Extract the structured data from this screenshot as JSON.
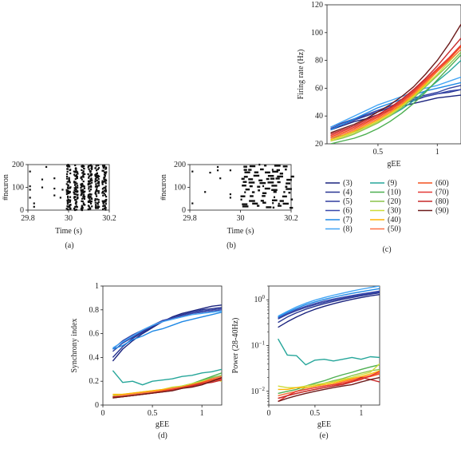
{
  "colors": {
    "(3)": "#1a237e",
    "(4)": "#283593",
    "(5)": "#303f9f",
    "(6)": "#3949ab",
    "(7)": "#1e88e5",
    "(8)": "#42a5f5",
    "(9)": "#26a69a",
    "(10)": "#4caf50",
    "(20)": "#8bc34a",
    "(30)": "#cddc39",
    "(40)": "#ffb300",
    "(50)": "#ff7043",
    "(60)": "#f4511e",
    "(70)": "#e53935",
    "(80)": "#c62828",
    "(90)": "#6d1b1b"
  },
  "legend": {
    "items": [
      "(3)",
      "(4)",
      "(5)",
      "(6)",
      "(7)",
      "(8)",
      "(9)",
      "(10)",
      "(20)",
      "(30)",
      "(40)",
      "(50)",
      "(60)",
      "(70)",
      "(80)",
      "(90)"
    ]
  },
  "chart_data": [
    {
      "id": "a",
      "type": "scatter",
      "caption": "(a)",
      "xlabel": "Time (s)",
      "ylabel": "#neuron",
      "xlim": [
        29.8,
        30.2
      ],
      "ylim": [
        0,
        200
      ],
      "xticks": [
        "29.8",
        "30",
        "30.2"
      ],
      "yticks": [
        "0",
        "100",
        "200"
      ],
      "points": [
        [
          29.81,
          170
        ],
        [
          29.81,
          105
        ],
        [
          29.81,
          90
        ],
        [
          29.81,
          55
        ],
        [
          29.83,
          30
        ],
        [
          29.83,
          15
        ],
        [
          29.87,
          135
        ],
        [
          29.87,
          100
        ],
        [
          29.89,
          190
        ],
        [
          29.93,
          140
        ],
        [
          29.93,
          65
        ],
        [
          29.93,
          95
        ],
        [
          29.96,
          55
        ],
        [
          29.97,
          90
        ]
      ],
      "bursts": [
        30.0,
        30.035,
        30.07,
        30.105,
        30.14,
        30.175
      ]
    },
    {
      "id": "b",
      "type": "scatter",
      "caption": "(b)",
      "xlabel": "Time (s)",
      "ylabel": "#neuron",
      "xlim": [
        29.8,
        30.2
      ],
      "ylim": [
        0,
        200
      ],
      "xticks": [
        "29.8",
        "30",
        "30.2"
      ],
      "yticks": [
        "0",
        "100",
        "200"
      ],
      "points": [
        [
          29.81,
          170
        ],
        [
          29.81,
          30
        ],
        [
          29.86,
          80
        ],
        [
          29.88,
          165
        ],
        [
          29.91,
          175
        ],
        [
          29.91,
          190
        ],
        [
          29.92,
          140
        ],
        [
          29.96,
          175
        ],
        [
          29.96,
          55
        ],
        [
          29.96,
          70
        ]
      ]
    },
    {
      "id": "c",
      "type": "line",
      "caption": "(c)",
      "xlabel": "gEE",
      "ylabel": "Firing rate (Hz)",
      "xlim": [
        0.07,
        1.2
      ],
      "ylim": [
        20,
        120
      ],
      "xticks": [
        "0.5",
        "1"
      ],
      "xtick_values": [
        0.5,
        1
      ],
      "yticks": [
        "20",
        "40",
        "60",
        "80",
        "100",
        "120"
      ],
      "ytick_values": [
        20,
        40,
        60,
        80,
        100,
        120
      ],
      "x": [
        0.1,
        0.2,
        0.3,
        0.4,
        0.5,
        0.6,
        0.7,
        0.8,
        0.9,
        1.0,
        1.1,
        1.2
      ],
      "series": [
        {
          "name": "(3)",
          "values": [
            30,
            33,
            36,
            38,
            41,
            44,
            47,
            49,
            51,
            53,
            54,
            55
          ]
        },
        {
          "name": "(4)",
          "values": [
            31,
            34,
            37,
            40,
            43,
            46,
            49,
            51,
            54,
            56,
            57,
            59
          ]
        },
        {
          "name": "(5)",
          "values": [
            32,
            35,
            38,
            41,
            44,
            47,
            50,
            53,
            55,
            57,
            60,
            62
          ]
        },
        {
          "name": "(6)",
          "values": [
            31,
            34,
            37,
            41,
            44,
            47,
            49,
            52,
            54,
            56,
            58,
            59
          ]
        },
        {
          "name": "(7)",
          "values": [
            30,
            34,
            38,
            42,
            46,
            49,
            52,
            55,
            58,
            60,
            62,
            64
          ]
        },
        {
          "name": "(8)",
          "values": [
            32,
            36,
            40,
            44,
            48,
            51,
            54,
            57,
            60,
            62,
            65,
            68
          ]
        },
        {
          "name": "(9)",
          "values": [
            24,
            26,
            29,
            32,
            36,
            40,
            45,
            51,
            58,
            65,
            72,
            80
          ]
        },
        {
          "name": "(10)",
          "values": [
            20,
            22,
            24,
            27,
            31,
            36,
            42,
            49,
            57,
            66,
            75,
            84
          ]
        },
        {
          "name": "(20)",
          "values": [
            22,
            24,
            27,
            31,
            35,
            40,
            46,
            53,
            61,
            69,
            77,
            86
          ]
        },
        {
          "name": "(30)",
          "values": [
            22,
            25,
            28,
            32,
            36,
            41,
            47,
            54,
            62,
            70,
            79,
            88
          ]
        },
        {
          "name": "(40)",
          "values": [
            23,
            26,
            29,
            33,
            37,
            42,
            48,
            55,
            63,
            72,
            81,
            90
          ]
        },
        {
          "name": "(50)",
          "values": [
            24,
            27,
            30,
            34,
            38,
            43,
            49,
            56,
            64,
            72,
            80,
            88
          ]
        },
        {
          "name": "(60)",
          "values": [
            25,
            28,
            31,
            35,
            39,
            44,
            50,
            57,
            65,
            73,
            81,
            90
          ]
        },
        {
          "name": "(70)",
          "values": [
            26,
            29,
            32,
            36,
            40,
            45,
            51,
            58,
            66,
            74,
            82,
            91
          ]
        },
        {
          "name": "(80)",
          "values": [
            27,
            30,
            33,
            37,
            41,
            46,
            52,
            59,
            67,
            76,
            86,
            96
          ]
        },
        {
          "name": "(90)",
          "values": [
            28,
            31,
            34,
            38,
            43,
            48,
            54,
            61,
            70,
            80,
            92,
            106
          ]
        }
      ]
    },
    {
      "id": "d",
      "type": "line",
      "caption": "(d)",
      "xlabel": "gEE",
      "ylabel": "Synchrony index",
      "xlim": [
        0,
        1.2
      ],
      "ylim": [
        0,
        1
      ],
      "xticks": [
        "0",
        "0.5",
        "1"
      ],
      "xtick_values": [
        0,
        0.5,
        1
      ],
      "yticks": [
        "0",
        "0.2",
        "0.4",
        "0.6",
        "0.8",
        "1"
      ],
      "ytick_values": [
        0,
        0.2,
        0.4,
        0.6,
        0.8,
        1
      ],
      "x": [
        0.1,
        0.2,
        0.3,
        0.4,
        0.5,
        0.6,
        0.7,
        0.8,
        0.9,
        1.0,
        1.1,
        1.2
      ],
      "series": [
        {
          "name": "(3)",
          "values": [
            0.37,
            0.47,
            0.54,
            0.6,
            0.65,
            0.7,
            0.74,
            0.77,
            0.79,
            0.81,
            0.83,
            0.84
          ]
        },
        {
          "name": "(4)",
          "values": [
            0.4,
            0.49,
            0.56,
            0.61,
            0.66,
            0.7,
            0.73,
            0.76,
            0.78,
            0.8,
            0.81,
            0.82
          ]
        },
        {
          "name": "(5)",
          "values": [
            0.45,
            0.52,
            0.57,
            0.62,
            0.66,
            0.7,
            0.73,
            0.75,
            0.77,
            0.79,
            0.8,
            0.81
          ]
        },
        {
          "name": "(6)",
          "values": [
            0.47,
            0.54,
            0.59,
            0.63,
            0.67,
            0.71,
            0.73,
            0.75,
            0.77,
            0.78,
            0.79,
            0.8
          ]
        },
        {
          "name": "(7)",
          "values": [
            0.47,
            0.5,
            0.55,
            0.58,
            0.62,
            0.64,
            0.67,
            0.7,
            0.72,
            0.74,
            0.76,
            0.78
          ]
        },
        {
          "name": "(8)",
          "values": [
            0.48,
            0.53,
            0.58,
            0.63,
            0.67,
            0.7,
            0.72,
            0.74,
            0.76,
            0.77,
            0.78,
            0.79
          ]
        },
        {
          "name": "(9)",
          "values": [
            0.29,
            0.19,
            0.2,
            0.17,
            0.2,
            0.21,
            0.22,
            0.24,
            0.25,
            0.27,
            0.28,
            0.3
          ]
        },
        {
          "name": "(10)",
          "values": [
            0.07,
            0.08,
            0.09,
            0.1,
            0.11,
            0.12,
            0.14,
            0.16,
            0.18,
            0.21,
            0.24,
            0.27
          ]
        },
        {
          "name": "(20)",
          "values": [
            0.06,
            0.07,
            0.08,
            0.09,
            0.11,
            0.12,
            0.14,
            0.16,
            0.18,
            0.2,
            0.23,
            0.25
          ]
        },
        {
          "name": "(30)",
          "values": [
            0.08,
            0.09,
            0.1,
            0.11,
            0.12,
            0.13,
            0.15,
            0.16,
            0.18,
            0.2,
            0.22,
            0.2
          ]
        },
        {
          "name": "(40)",
          "values": [
            0.09,
            0.09,
            0.1,
            0.11,
            0.12,
            0.13,
            0.14,
            0.15,
            0.17,
            0.19,
            0.21,
            0.22
          ]
        },
        {
          "name": "(50)",
          "values": [
            0.07,
            0.08,
            0.09,
            0.1,
            0.11,
            0.12,
            0.14,
            0.15,
            0.17,
            0.19,
            0.22,
            0.24
          ]
        },
        {
          "name": "(60)",
          "values": [
            0.07,
            0.07,
            0.08,
            0.09,
            0.1,
            0.12,
            0.13,
            0.15,
            0.17,
            0.19,
            0.21,
            0.23
          ]
        },
        {
          "name": "(70)",
          "values": [
            0.06,
            0.07,
            0.08,
            0.09,
            0.1,
            0.11,
            0.13,
            0.14,
            0.16,
            0.18,
            0.2,
            0.22
          ]
        },
        {
          "name": "(80)",
          "values": [
            0.07,
            0.07,
            0.08,
            0.09,
            0.1,
            0.11,
            0.12,
            0.14,
            0.16,
            0.18,
            0.19,
            0.21
          ]
        },
        {
          "name": "(90)",
          "values": [
            0.06,
            0.07,
            0.08,
            0.09,
            0.1,
            0.11,
            0.12,
            0.14,
            0.15,
            0.17,
            0.2,
            0.23
          ]
        }
      ]
    },
    {
      "id": "e",
      "type": "line",
      "caption": "(e)",
      "xlabel": "gEE",
      "ylabel": "Power (28-40Hz)",
      "xlim": [
        0,
        1.2
      ],
      "ylim": [
        0.005,
        2
      ],
      "yscale": "log",
      "xticks": [
        "0",
        "0.5",
        "1"
      ],
      "xtick_values": [
        0,
        0.5,
        1
      ],
      "ytick_values": [
        0.01,
        0.1,
        1
      ],
      "ytick_labels": [
        {
          "base": "10",
          "exp": "−2"
        },
        {
          "base": "10",
          "exp": "−1"
        },
        {
          "base": "10",
          "exp": "0"
        }
      ],
      "x": [
        0.1,
        0.2,
        0.3,
        0.4,
        0.5,
        0.6,
        0.7,
        0.8,
        0.9,
        1.0,
        1.1,
        1.2
      ],
      "series": [
        {
          "name": "(3)",
          "values": [
            0.25,
            0.33,
            0.42,
            0.52,
            0.62,
            0.72,
            0.82,
            0.92,
            1.02,
            1.12,
            1.22,
            1.3
          ]
        },
        {
          "name": "(4)",
          "values": [
            0.32,
            0.42,
            0.52,
            0.62,
            0.72,
            0.82,
            0.92,
            1.02,
            1.12,
            1.22,
            1.32,
            1.42
          ]
        },
        {
          "name": "(5)",
          "values": [
            0.38,
            0.48,
            0.58,
            0.68,
            0.78,
            0.88,
            0.98,
            1.08,
            1.18,
            1.28,
            1.38,
            1.48
          ]
        },
        {
          "name": "(6)",
          "values": [
            0.4,
            0.5,
            0.61,
            0.72,
            0.83,
            0.94,
            1.04,
            1.14,
            1.24,
            1.34,
            1.44,
            1.55
          ]
        },
        {
          "name": "(7)",
          "values": [
            0.42,
            0.53,
            0.65,
            0.78,
            0.9,
            1.02,
            1.14,
            1.26,
            1.38,
            1.5,
            1.62,
            1.75
          ]
        },
        {
          "name": "(8)",
          "values": [
            0.44,
            0.56,
            0.7,
            0.84,
            0.98,
            1.12,
            1.26,
            1.4,
            1.55,
            1.7,
            1.85,
            2.0
          ]
        },
        {
          "name": "(9)",
          "values": [
            0.14,
            0.062,
            0.06,
            0.038,
            0.048,
            0.05,
            0.046,
            0.05,
            0.055,
            0.05,
            0.057,
            0.055
          ]
        },
        {
          "name": "(10)",
          "values": [
            0.009,
            0.01,
            0.011,
            0.013,
            0.015,
            0.017,
            0.02,
            0.023,
            0.026,
            0.03,
            0.034,
            0.038
          ]
        },
        {
          "name": "(20)",
          "values": [
            0.008,
            0.009,
            0.01,
            0.012,
            0.013,
            0.015,
            0.017,
            0.019,
            0.022,
            0.025,
            0.028,
            0.03
          ]
        },
        {
          "name": "(30)",
          "values": [
            0.013,
            0.012,
            0.012,
            0.013,
            0.014,
            0.015,
            0.016,
            0.018,
            0.02,
            0.023,
            0.026,
            0.04
          ]
        },
        {
          "name": "(40)",
          "values": [
            0.011,
            0.011,
            0.012,
            0.012,
            0.013,
            0.014,
            0.015,
            0.017,
            0.019,
            0.021,
            0.024,
            0.028
          ]
        },
        {
          "name": "(50)",
          "values": [
            0.008,
            0.009,
            0.01,
            0.011,
            0.012,
            0.013,
            0.014,
            0.016,
            0.018,
            0.02,
            0.022,
            0.025
          ]
        },
        {
          "name": "(60)",
          "values": [
            0.007,
            0.008,
            0.009,
            0.01,
            0.011,
            0.012,
            0.013,
            0.015,
            0.017,
            0.019,
            0.021,
            0.024
          ]
        },
        {
          "name": "(70)",
          "values": [
            0.006,
            0.008,
            0.01,
            0.011,
            0.012,
            0.013,
            0.014,
            0.015,
            0.016,
            0.018,
            0.022,
            0.027
          ]
        },
        {
          "name": "(80)",
          "values": [
            0.007,
            0.008,
            0.009,
            0.01,
            0.011,
            0.012,
            0.013,
            0.014,
            0.016,
            0.02,
            0.018,
            0.016
          ]
        },
        {
          "name": "(90)",
          "values": [
            0.006,
            0.007,
            0.008,
            0.009,
            0.01,
            0.011,
            0.012,
            0.013,
            0.014,
            0.016,
            0.018,
            0.02
          ]
        }
      ]
    }
  ]
}
